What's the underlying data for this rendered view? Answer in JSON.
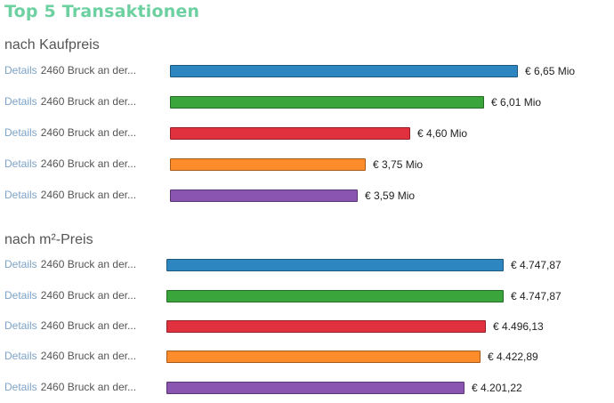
{
  "page": {
    "title": "Top 5 Transaktionen"
  },
  "sections": [
    {
      "title": "nach Kaufpreis",
      "rows": [
        {
          "link": "Details",
          "address": "2460 Bruck an der...",
          "value_label": "€ 6,65 Mio",
          "value": 6.65,
          "color": "#2e86c1"
        },
        {
          "link": "Details",
          "address": "2460 Bruck an der...",
          "value_label": "€ 6,01 Mio",
          "value": 6.01,
          "color": "#3aa53a"
        },
        {
          "link": "Details",
          "address": "2460 Bruck an der...",
          "value_label": "€ 4,60 Mio",
          "value": 4.6,
          "color": "#e1313f"
        },
        {
          "link": "Details",
          "address": "2460 Bruck an der...",
          "value_label": "€ 3,75 Mio",
          "value": 3.75,
          "color": "#ff8c2a"
        },
        {
          "link": "Details",
          "address": "2460 Bruck an der...",
          "value_label": "€ 3,59 Mio",
          "value": 3.59,
          "color": "#8a55b0"
        }
      ]
    },
    {
      "title": "nach m²-Preis",
      "rows": [
        {
          "link": "Details",
          "address": "2460 Bruck an der...",
          "value_label": "€ 4.747,87",
          "value": 4747.87,
          "color": "#2e86c1"
        },
        {
          "link": "Details",
          "address": "2460 Bruck an der...",
          "value_label": "€ 4.747,87",
          "value": 4747.87,
          "color": "#3aa53a"
        },
        {
          "link": "Details",
          "address": "2460 Bruck an der...",
          "value_label": "€ 4.496,13",
          "value": 4496.13,
          "color": "#e1313f"
        },
        {
          "link": "Details",
          "address": "2460 Bruck an der...",
          "value_label": "€ 4.422,89",
          "value": 4422.89,
          "color": "#ff8c2a"
        },
        {
          "link": "Details",
          "address": "2460 Bruck an der...",
          "value_label": "€ 4.201,22",
          "value": 4201.22,
          "color": "#8a55b0"
        }
      ]
    }
  ]
}
